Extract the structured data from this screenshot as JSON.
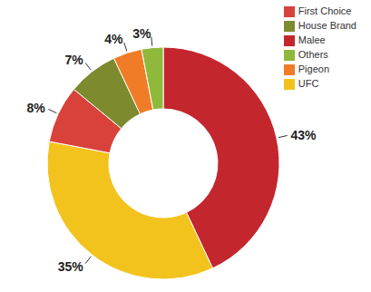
{
  "chart_data": {
    "type": "donut",
    "categories": [
      "Malee",
      "UFC",
      "First Choice",
      "House Brand",
      "Pigeon",
      "Others"
    ],
    "values": [
      43,
      35,
      8,
      7,
      4,
      3
    ],
    "value_labels": [
      "43%",
      "35%",
      "8%",
      "7%",
      "4%",
      "3%"
    ],
    "colors": [
      "#c4262e",
      "#f2c31c",
      "#d9413b",
      "#7d8a2e",
      "#f07c28",
      "#8fb93a"
    ],
    "legend": "upper right",
    "data_labels": true
  }
}
